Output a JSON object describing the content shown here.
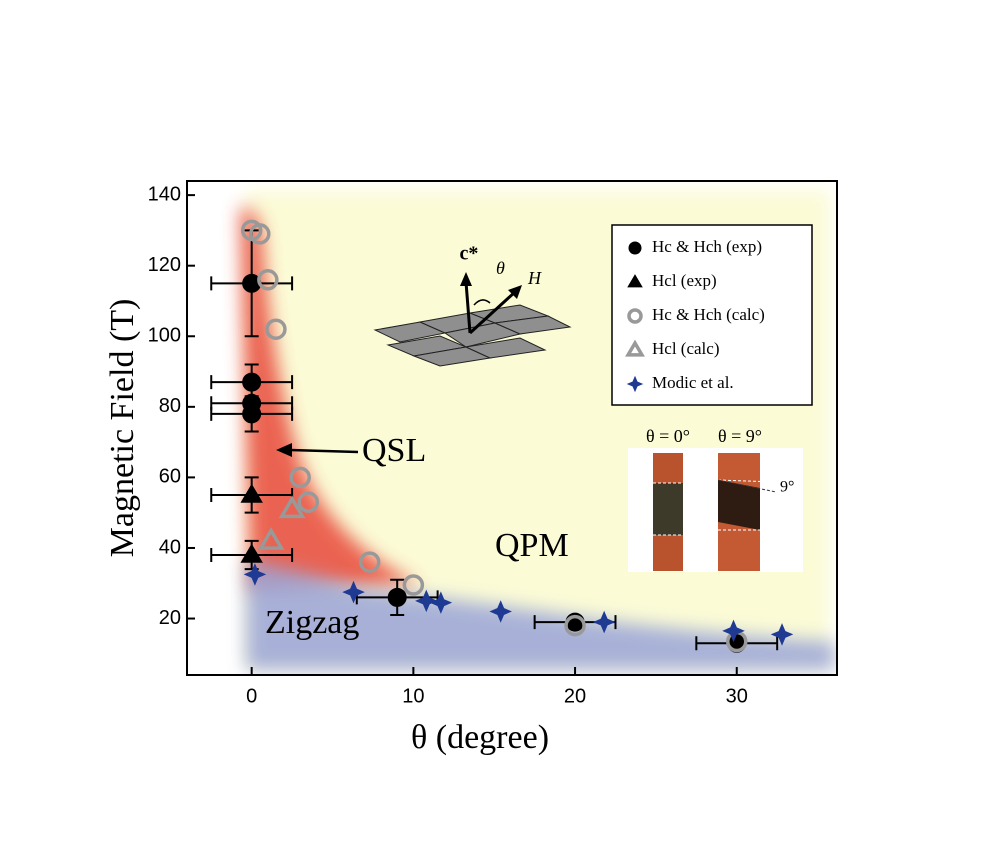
{
  "chart_data": {
    "type": "scatter",
    "xlabel": "θ (degree)",
    "ylabel": "Magnetic Field (T)",
    "xlim": [
      -4,
      36.2
    ],
    "ylim": [
      4,
      144
    ],
    "xticks": [
      0,
      10,
      20,
      30
    ],
    "yticks": [
      20,
      40,
      60,
      80,
      100,
      120,
      140
    ],
    "series": [
      {
        "name": "Hc & Hch (exp)",
        "marker": "circle",
        "filled": true,
        "color": "#000000",
        "x": [
          0,
          0,
          0,
          0,
          9,
          20,
          30
        ],
        "y": [
          115,
          87,
          81,
          78,
          26,
          19,
          13
        ],
        "xerr": [
          2.5,
          2.5,
          2.5,
          2.5,
          2.5,
          2.5,
          2.5
        ],
        "yerr": [
          15,
          5,
          null,
          5,
          5,
          null,
          null
        ]
      },
      {
        "name": "Hcl (exp)",
        "marker": "triangle",
        "filled": true,
        "color": "#000000",
        "x": [
          0,
          0
        ],
        "y": [
          55,
          38
        ],
        "xerr": [
          2.5,
          2.5
        ],
        "yerr": [
          5,
          4
        ]
      },
      {
        "name": "Hc & Hch (calc)",
        "marker": "circle",
        "filled": false,
        "color": "#999999",
        "x": [
          0,
          0.5,
          1,
          1.5,
          3,
          3.5,
          7.3,
          10,
          20,
          30
        ],
        "y": [
          130,
          129,
          116,
          102,
          60,
          53,
          36,
          29.5,
          18,
          13.5
        ]
      },
      {
        "name": "Hcl (calc)",
        "marker": "triangle",
        "filled": false,
        "color": "#999999",
        "x": [
          1.2,
          2.5
        ],
        "y": [
          42,
          51
        ]
      },
      {
        "name": "Modic et al.",
        "marker": "star",
        "filled": true,
        "color": "#1f3a93",
        "x": [
          0.2,
          6.3,
          10.8,
          11.7,
          15.4,
          21.8,
          29.8,
          32.8
        ],
        "y": [
          32.5,
          27.5,
          25,
          24.5,
          22,
          19,
          16.5,
          15.5
        ]
      }
    ],
    "annotations": {
      "qsl": "QSL",
      "qpm": "QPM",
      "zigzag": "Zigzag",
      "c_axis": "c*",
      "theta": "θ",
      "field": "H",
      "photo_left": "θ = 0°",
      "photo_right": "θ = 9°",
      "photo_angle": "9°"
    }
  }
}
